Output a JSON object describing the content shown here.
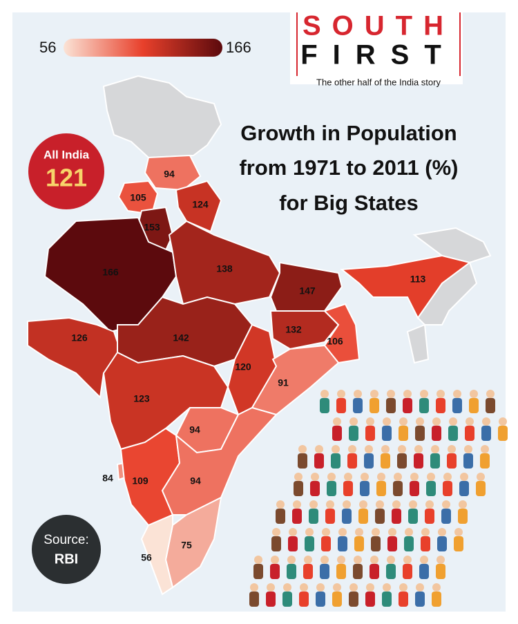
{
  "legend": {
    "min": 56,
    "max": 166
  },
  "logo": {
    "line1": "SOUTH",
    "line2": "FIRST",
    "tagline": "The other half of the India story"
  },
  "title_lines": [
    "Growth in Population",
    "from 1971 to 2011 (%)",
    "for Big States"
  ],
  "all_india": {
    "label": "All India",
    "value": 121
  },
  "source": {
    "label": "Source:",
    "value": "RBI"
  },
  "regions": {
    "values": [
      94,
      105,
      124,
      153,
      166,
      138,
      147,
      113,
      126,
      142,
      132,
      106,
      120,
      91,
      123,
      94,
      84,
      109,
      94,
      75,
      56
    ]
  }
}
